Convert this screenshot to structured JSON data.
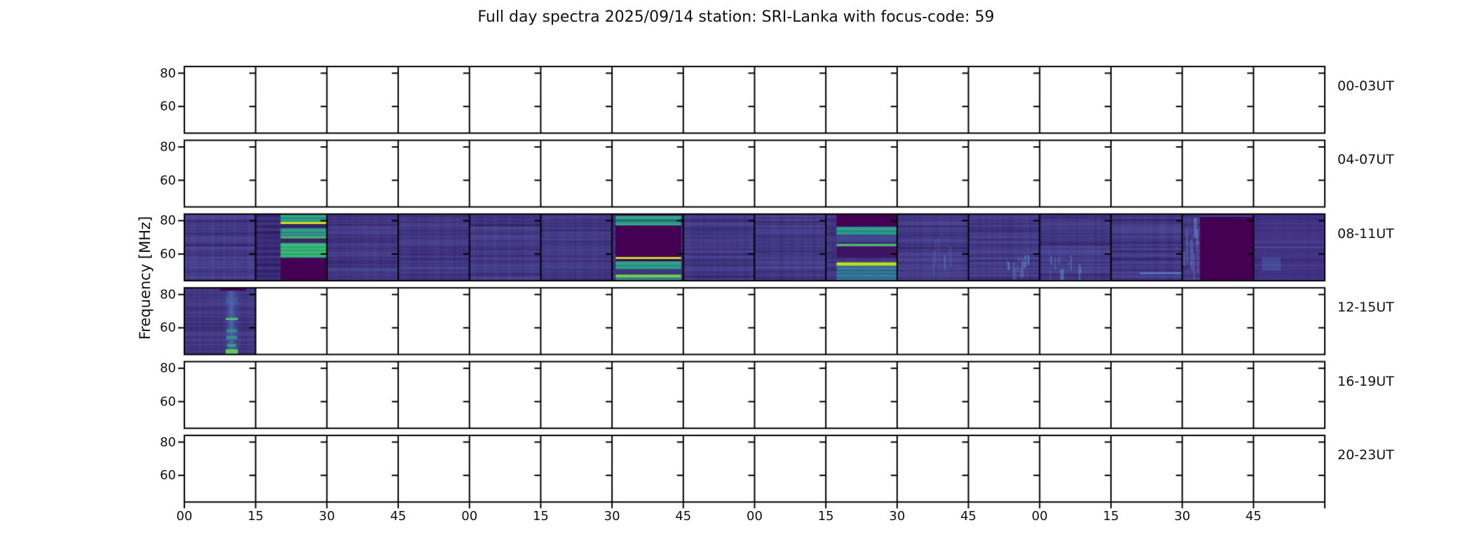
{
  "figure": {
    "title": "Full day spectra 2025/09/14 station: SRI-Lanka with focus-code: 59",
    "background": "#ffffff"
  },
  "axes": {
    "ylabel": "Frequency [MHz]",
    "ytick_labels": [
      "80",
      "60"
    ],
    "yticks_mhz": [
      80,
      60
    ],
    "xtick_labels": [
      "00",
      "15",
      "30",
      "45",
      "00",
      "15",
      "30",
      "45",
      "00",
      "15",
      "30",
      "45",
      "00",
      "15",
      "30",
      "45"
    ]
  },
  "chart_data": {
    "type": "heatmap",
    "subtype": "solar-radio-spectrogram-grid",
    "title": "Full day spectra 2025/09/14 station: SRI-Lanka with focus-code: 59",
    "date": "2025/09/14",
    "station": "SRI-Lanka",
    "focus_code": "59",
    "colormap": "viridis",
    "ylabel": "Frequency [MHz]",
    "freq_range_mhz": [
      44,
      84
    ],
    "minutes_per_panel": 15,
    "panels_per_row": 16,
    "grid": "off",
    "legend": "none",
    "palette": {
      "darkest": "#440154",
      "base_purple": "#3a2a76",
      "teal": "#2aa386",
      "green": "#35b777",
      "bright_green": "#52c569",
      "light_green": "#7bd34f",
      "yellow": "#e2e220",
      "yellow_green": "#c8e029",
      "blue": "#4f6ab8",
      "light_blue": "#5f9fd0"
    },
    "rows": [
      {
        "label": "00-03UT",
        "has_data": false,
        "panels": []
      },
      {
        "label": "04-07UT",
        "has_data": false,
        "panels": []
      },
      {
        "label": "08-11UT",
        "has_data": true,
        "panels": [
          {
            "index": 0,
            "utc": "08:00",
            "base": "#3a2a76",
            "noise": 0.62,
            "features": [
              {
                "kind": "band",
                "f0": 70.5,
                "f1": 68.5,
                "x0": 0,
                "x1": 1,
                "color": "#4a4596",
                "alpha": 0.3
              },
              {
                "kind": "band",
                "f0": 53,
                "f1": 50.8,
                "x0": 0,
                "x1": 1,
                "color": "#4f55a8",
                "alpha": 0.35
              }
            ]
          },
          {
            "index": 1,
            "utc": "08:15",
            "base": "#3a2a76",
            "noise": 0.35,
            "features": [
              {
                "kind": "hstripes",
                "f0": 84,
                "f1": 44,
                "x0": 0,
                "x1": 0.35,
                "color": "#221050",
                "alpha": 0.55
              },
              {
                "kind": "band",
                "f0": 84,
                "f1": 79.3,
                "x0": 0.35,
                "x1": 1,
                "color": "#27a086",
                "texture": true
              },
              {
                "kind": "line",
                "f": 78.6,
                "x0": 0.35,
                "x1": 1,
                "color": "#e2e220",
                "px": 3
              },
              {
                "kind": "band",
                "f0": 78,
                "f1": 75.8,
                "x0": 0.35,
                "x1": 1,
                "color": "#33265e",
                "alpha": 0.9
              },
              {
                "kind": "band",
                "f0": 75.5,
                "f1": 70.8,
                "x0": 0.35,
                "x1": 1,
                "color": "#2e9488",
                "texture": true
              },
              {
                "kind": "line",
                "f": 70,
                "x0": 0.35,
                "x1": 1,
                "color": "#49c16d",
                "px": 3
              },
              {
                "kind": "band",
                "f0": 69.3,
                "f1": 66.9,
                "x0": 0.35,
                "x1": 1,
                "color": "#37265f",
                "alpha": 0.9
              },
              {
                "kind": "band",
                "f0": 66.5,
                "f1": 58,
                "x0": 0.35,
                "x1": 1,
                "color": "#35b777",
                "texture": true
              },
              {
                "kind": "block",
                "f0": 57.5,
                "f1": 44,
                "x0": 0.35,
                "x1": 1,
                "color": "#440154"
              }
            ]
          },
          {
            "index": 2,
            "utc": "08:30",
            "base": "#3a2a76",
            "noise": 0.55,
            "features": [
              {
                "kind": "band",
                "f0": 52.5,
                "f1": 50.5,
                "x0": 0,
                "x1": 1,
                "color": "#4f55a8",
                "alpha": 0.3
              }
            ]
          },
          {
            "index": 3,
            "utc": "08:45",
            "base": "#3a2a76",
            "noise": 0.5,
            "features": [
              {
                "kind": "band",
                "f0": 52.5,
                "f1": 50.5,
                "x0": 0,
                "x1": 1,
                "color": "#4f55a8",
                "alpha": 0.25
              }
            ]
          },
          {
            "index": 4,
            "utc": "09:00",
            "base": "#3a2a76",
            "noise": 0.62,
            "features": [
              {
                "kind": "band",
                "f0": 70,
                "f1": 66,
                "x0": 0,
                "x1": 1,
                "color": "#453a8a",
                "alpha": 0.3
              },
              {
                "kind": "band",
                "f0": 52.5,
                "f1": 50,
                "x0": 0,
                "x1": 1,
                "color": "#4f55a8",
                "alpha": 0.3
              }
            ]
          },
          {
            "index": 5,
            "utc": "09:15",
            "base": "#3a2a76",
            "noise": 0.5,
            "features": [
              {
                "kind": "band",
                "f0": 52.5,
                "f1": 50,
                "x0": 0,
                "x1": 1,
                "color": "#4a4f9e",
                "alpha": 0.25
              }
            ]
          },
          {
            "index": 6,
            "utc": "09:30",
            "base": "#3a2a76",
            "noise": 0.4,
            "features": [
              {
                "kind": "block",
                "f0": 84,
                "f1": 83,
                "x0": 0.05,
                "x1": 0.97,
                "color": "#440154"
              },
              {
                "kind": "band",
                "f0": 83,
                "f1": 77.2,
                "x0": 0.05,
                "x1": 0.97,
                "color": "#2aa386",
                "texture": true
              },
              {
                "kind": "line",
                "f": 80,
                "x0": 0.05,
                "x1": 0.97,
                "color": "#2a3a6e",
                "px": 2,
                "alpha": 0.8
              },
              {
                "kind": "block",
                "f0": 77,
                "f1": 58.2,
                "x0": 0.05,
                "x1": 0.97,
                "color": "#440154"
              },
              {
                "kind": "line",
                "f": 57.6,
                "x0": 0.05,
                "x1": 0.97,
                "color": "#c8e029",
                "px": 3
              },
              {
                "kind": "block",
                "f0": 56.9,
                "f1": 55.7,
                "x0": 0.05,
                "x1": 0.97,
                "color": "#440154"
              },
              {
                "kind": "band",
                "f0": 55.7,
                "f1": 50.9,
                "x0": 0.05,
                "x1": 0.97,
                "color": "#2b9d89",
                "texture": true
              },
              {
                "kind": "band",
                "f0": 50.9,
                "f1": 48.3,
                "x0": 0.05,
                "x1": 0.97,
                "color": "#3a3b78",
                "alpha": 0.95
              },
              {
                "kind": "line",
                "f": 46.8,
                "x0": 0.05,
                "x1": 0.97,
                "color": "#7bd34f",
                "px": 4
              },
              {
                "kind": "band",
                "f0": 45.9,
                "f1": 44,
                "x0": 0.05,
                "x1": 0.97,
                "color": "#2f9486",
                "alpha": 0.9
              }
            ]
          },
          {
            "index": 7,
            "utc": "09:45",
            "base": "#3a2a76",
            "noise": 0.58,
            "features": [
              {
                "kind": "band",
                "f0": 52.5,
                "f1": 50,
                "x0": 0,
                "x1": 1,
                "color": "#4f55a8",
                "alpha": 0.3
              }
            ]
          },
          {
            "index": 8,
            "utc": "10:00",
            "base": "#3a2a76",
            "noise": 0.62,
            "features": [
              {
                "kind": "band",
                "f0": 76,
                "f1": 72,
                "x0": 0,
                "x1": 1,
                "color": "#45408e",
                "alpha": 0.3
              },
              {
                "kind": "band",
                "f0": 52.5,
                "f1": 50,
                "x0": 0,
                "x1": 1,
                "color": "#4f55a8",
                "alpha": 0.28
              }
            ]
          },
          {
            "index": 9,
            "utc": "10:15",
            "base": "#3a2a76",
            "noise": 0.45,
            "features": [
              {
                "kind": "block",
                "f0": 84,
                "f1": 76.6,
                "x0": 0.15,
                "x1": 1,
                "color": "#440154"
              },
              {
                "kind": "band",
                "f0": 76.3,
                "f1": 71.6,
                "x0": 0.15,
                "x1": 1,
                "color": "#2a9a89",
                "texture": true
              },
              {
                "kind": "band",
                "f0": 71.3,
                "f1": 67.6,
                "x0": 0.15,
                "x1": 1,
                "color": "#3f4a92",
                "alpha": 0.85
              },
              {
                "kind": "line",
                "f": 65.4,
                "x0": 0.15,
                "x1": 1,
                "color": "#52c569",
                "px": 3
              },
              {
                "kind": "band",
                "f0": 64.5,
                "f1": 58,
                "x0": 0.15,
                "x1": 1,
                "color": "#401060",
                "alpha": 0.9
              },
              {
                "kind": "line",
                "f": 54,
                "x0": 0.15,
                "x1": 1,
                "color": "#b5dd2b",
                "px": 5
              },
              {
                "kind": "band",
                "f0": 52.6,
                "f1": 44,
                "x0": 0.15,
                "x1": 1,
                "color": "#2f7f9e",
                "alpha": 0.85,
                "texture": true
              }
            ]
          },
          {
            "index": 10,
            "utc": "10:30",
            "base": "#3a2a76",
            "noise": 0.6,
            "features": [
              {
                "kind": "vstreaks",
                "x0": 0.5,
                "x1": 0.85,
                "f0": 70,
                "f1": 44,
                "color": "#5f7fc0",
                "count": 6
              },
              {
                "kind": "band",
                "f0": 52.5,
                "f1": 50,
                "x0": 0,
                "x1": 1,
                "color": "#4f55a8",
                "alpha": 0.28
              }
            ]
          },
          {
            "index": 11,
            "utc": "10:45",
            "base": "#3a2a76",
            "noise": 0.6,
            "features": [
              {
                "kind": "line",
                "f": 84,
                "x0": 0,
                "x1": 1,
                "color": "#4f6ab8",
                "px": 2,
                "alpha": 0.8
              },
              {
                "kind": "vstreaks",
                "x0": 0.5,
                "x1": 0.95,
                "f0": 62,
                "f1": 44,
                "color": "#5f9fd4",
                "count": 14
              }
            ]
          },
          {
            "index": 12,
            "utc": "11:00",
            "base": "#3a2a76",
            "noise": 0.6,
            "features": [
              {
                "kind": "vstreaks",
                "x0": 0.1,
                "x1": 0.6,
                "f0": 60,
                "f1": 44,
                "color": "#5f9fd4",
                "count": 10
              },
              {
                "kind": "band",
                "f0": 52.5,
                "f1": 50,
                "x0": 0,
                "x1": 1,
                "color": "#4f55a8",
                "alpha": 0.25
              }
            ]
          },
          {
            "index": 13,
            "utc": "11:15",
            "base": "#3a2a76",
            "noise": 0.55,
            "features": [
              {
                "kind": "line",
                "f": 48.5,
                "x0": 0.4,
                "x1": 1,
                "color": "#5f8fd0",
                "px": 2,
                "alpha": 0.9
              }
            ]
          },
          {
            "index": 14,
            "utc": "11:30",
            "base": "#3a2a76",
            "noise": 0.5,
            "features": [
              {
                "kind": "vstreaks",
                "x0": 0,
                "x1": 0.25,
                "f0": 84,
                "f1": 44,
                "color": "#7286c9",
                "count": 14
              },
              {
                "kind": "block",
                "f0": 84,
                "f1": 44,
                "x0": 0.25,
                "x1": 1,
                "color": "#440154"
              },
              {
                "kind": "line",
                "f": 82.8,
                "x0": 0.25,
                "x1": 1,
                "color": "#3f51a3",
                "px": 2
              }
            ]
          },
          {
            "index": 15,
            "utc": "11:45",
            "base": "#3f2d7e",
            "noise": 0.3,
            "features": [
              {
                "kind": "line",
                "f": 64,
                "x0": 0,
                "x1": 1,
                "color": "#4d55a5",
                "px": 2,
                "alpha": 0.7
              },
              {
                "kind": "band",
                "f0": 58,
                "f1": 50,
                "x0": 0.12,
                "x1": 0.38,
                "color": "#4a6fb5",
                "alpha": 0.4
              }
            ]
          }
        ]
      },
      {
        "label": "12-15UT",
        "has_data": true,
        "panels": [
          {
            "index": 0,
            "utc": "12:00",
            "base": "#3a2a74",
            "noise": 0.5,
            "features": [
              {
                "kind": "vglow",
                "x": 0.66,
                "w": 0.3,
                "f0": 84,
                "f1": 44,
                "color": "#4a5fae",
                "alpha": 0.45
              },
              {
                "kind": "vglow",
                "x": 0.66,
                "w": 0.14,
                "f0": 84,
                "f1": 44,
                "color": "#5079b8",
                "alpha": 0.55
              },
              {
                "kind": "band",
                "f0": 84,
                "f1": 82.3,
                "x0": 0.5,
                "x1": 0.86,
                "color": "#440154",
                "alpha": 1
              },
              {
                "kind": "band",
                "f0": 78,
                "f1": 74,
                "x0": 0.58,
                "x1": 0.75,
                "color": "#3f6ba8",
                "alpha": 0.45
              },
              {
                "kind": "line",
                "f": 65.3,
                "x0": 0.58,
                "x1": 0.75,
                "color": "#52c569",
                "px": 3
              },
              {
                "kind": "band",
                "f0": 59.2,
                "f1": 57.2,
                "x0": 0.59,
                "x1": 0.74,
                "color": "#2f9a8a",
                "alpha": 0.8
              },
              {
                "kind": "band",
                "f0": 55.2,
                "f1": 53.2,
                "x0": 0.59,
                "x1": 0.74,
                "color": "#2f9a8a",
                "alpha": 0.85
              },
              {
                "kind": "band",
                "f0": 50.4,
                "f1": 48.4,
                "x0": 0.6,
                "x1": 0.73,
                "color": "#35b06f",
                "alpha": 0.7
              },
              {
                "kind": "band",
                "f0": 47.2,
                "f1": 44.3,
                "x0": 0.58,
                "x1": 0.75,
                "color": "#5ec962",
                "alpha": 1
              }
            ]
          }
        ]
      },
      {
        "label": "16-19UT",
        "has_data": false,
        "panels": []
      },
      {
        "label": "20-23UT",
        "has_data": false,
        "panels": []
      }
    ]
  }
}
